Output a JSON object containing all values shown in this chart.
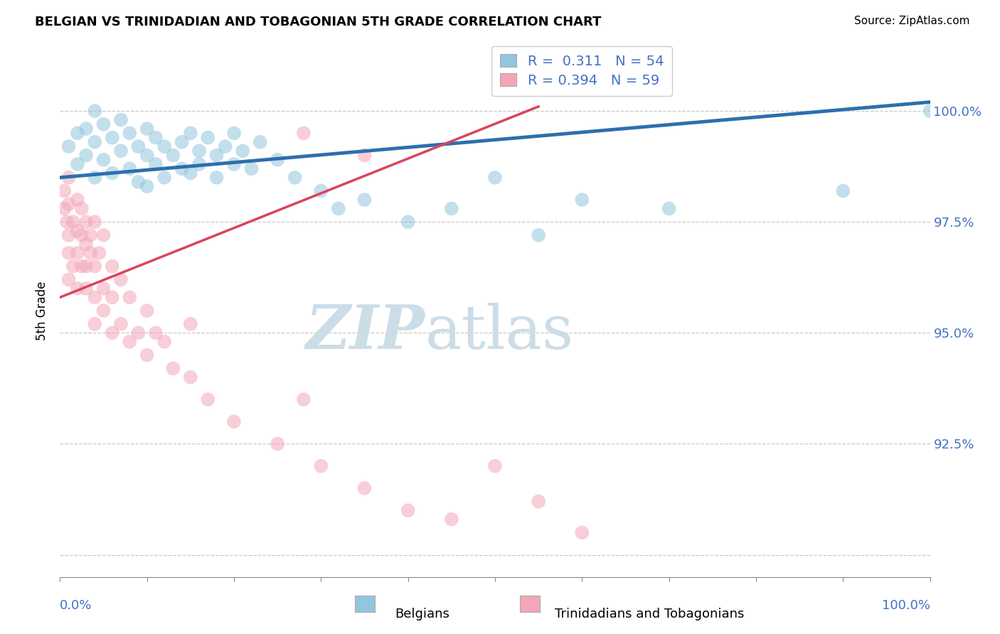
{
  "title": "BELGIAN VS TRINIDADIAN AND TOBAGONIAN 5TH GRADE CORRELATION CHART",
  "source_text": "Source: ZipAtlas.com",
  "ylabel": "5th Grade",
  "ylabel_ticks": [
    90.0,
    92.5,
    95.0,
    97.5,
    100.0
  ],
  "ylabel_tick_labels": [
    "",
    "92.5%",
    "95.0%",
    "97.5%",
    "100.0%"
  ],
  "xlim": [
    0.0,
    1.0
  ],
  "ylim": [
    89.5,
    101.5
  ],
  "legend_val1": "0.311",
  "legend_nval1": "54",
  "legend_val2": "0.394",
  "legend_nval2": "59",
  "blue_color": "#92c5de",
  "pink_color": "#f4a6b8",
  "blue_line_color": "#2c6fad",
  "pink_line_color": "#d9445a",
  "watermark_color": "#ccdde8",
  "blue_scatter_x": [
    0.01,
    0.02,
    0.02,
    0.03,
    0.03,
    0.04,
    0.04,
    0.04,
    0.05,
    0.05,
    0.06,
    0.06,
    0.07,
    0.07,
    0.08,
    0.08,
    0.09,
    0.09,
    0.1,
    0.1,
    0.1,
    0.11,
    0.11,
    0.12,
    0.12,
    0.13,
    0.14,
    0.14,
    0.15,
    0.15,
    0.16,
    0.16,
    0.17,
    0.18,
    0.18,
    0.19,
    0.2,
    0.2,
    0.21,
    0.22,
    0.23,
    0.25,
    0.27,
    0.3,
    0.32,
    0.35,
    0.4,
    0.45,
    0.5,
    0.55,
    0.6,
    0.7,
    0.9,
    1.0
  ],
  "blue_scatter_y": [
    99.2,
    99.5,
    98.8,
    99.6,
    99.0,
    99.3,
    98.5,
    100.0,
    99.7,
    98.9,
    99.4,
    98.6,
    99.8,
    99.1,
    99.5,
    98.7,
    99.2,
    98.4,
    99.6,
    99.0,
    98.3,
    99.4,
    98.8,
    99.2,
    98.5,
    99.0,
    98.7,
    99.3,
    99.5,
    98.6,
    99.1,
    98.8,
    99.4,
    99.0,
    98.5,
    99.2,
    98.8,
    99.5,
    99.1,
    98.7,
    99.3,
    98.9,
    98.5,
    98.2,
    97.8,
    98.0,
    97.5,
    97.8,
    98.5,
    97.2,
    98.0,
    97.8,
    98.2,
    100.0
  ],
  "pink_scatter_x": [
    0.005,
    0.005,
    0.008,
    0.01,
    0.01,
    0.01,
    0.01,
    0.01,
    0.015,
    0.015,
    0.02,
    0.02,
    0.02,
    0.02,
    0.025,
    0.025,
    0.025,
    0.03,
    0.03,
    0.03,
    0.03,
    0.035,
    0.035,
    0.04,
    0.04,
    0.04,
    0.04,
    0.045,
    0.05,
    0.05,
    0.05,
    0.06,
    0.06,
    0.06,
    0.07,
    0.07,
    0.08,
    0.08,
    0.09,
    0.1,
    0.1,
    0.11,
    0.12,
    0.13,
    0.15,
    0.15,
    0.17,
    0.2,
    0.25,
    0.28,
    0.3,
    0.35,
    0.4,
    0.45,
    0.5,
    0.55,
    0.6,
    0.28,
    0.35
  ],
  "pink_scatter_y": [
    97.8,
    98.2,
    97.5,
    98.5,
    97.2,
    96.8,
    96.2,
    97.9,
    97.5,
    96.5,
    98.0,
    97.3,
    96.8,
    96.0,
    97.8,
    97.2,
    96.5,
    97.5,
    97.0,
    96.5,
    96.0,
    97.2,
    96.8,
    97.5,
    96.5,
    95.8,
    95.2,
    96.8,
    97.2,
    96.0,
    95.5,
    96.5,
    95.8,
    95.0,
    96.2,
    95.2,
    95.8,
    94.8,
    95.0,
    95.5,
    94.5,
    95.0,
    94.8,
    94.2,
    95.2,
    94.0,
    93.5,
    93.0,
    92.5,
    93.5,
    92.0,
    91.5,
    91.0,
    90.8,
    92.0,
    91.2,
    90.5,
    99.5,
    99.0
  ],
  "blue_trend_x": [
    0.0,
    1.0
  ],
  "blue_trend_y": [
    98.5,
    100.2
  ],
  "pink_trend_x": [
    0.0,
    0.55
  ],
  "pink_trend_y": [
    95.8,
    100.1
  ]
}
